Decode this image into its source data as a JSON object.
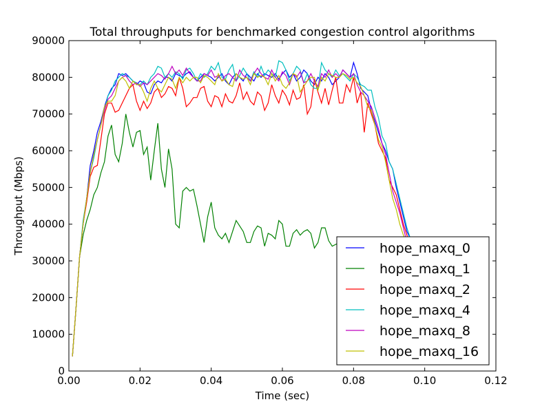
{
  "chart_data": {
    "type": "line",
    "title": "Total throughputs for benchmarked congestion control algorithms",
    "xlabel": "Time (sec)",
    "ylabel": "Throughput (Mbps)",
    "xlim": [
      0,
      0.12
    ],
    "ylim": [
      0,
      90000
    ],
    "xticks": [
      0,
      0.02,
      0.04,
      0.06,
      0.08,
      0.1,
      0.12
    ],
    "xtick_labels": [
      "0.00",
      "0.02",
      "0.04",
      "0.06",
      "0.08",
      "0.10",
      "0.12"
    ],
    "yticks": [
      0,
      10000,
      20000,
      30000,
      40000,
      50000,
      60000,
      70000,
      80000,
      90000
    ],
    "ytick_labels": [
      "0",
      "10000",
      "20000",
      "30000",
      "40000",
      "50000",
      "60000",
      "70000",
      "80000",
      "90000"
    ],
    "legend_position": "lower-right",
    "x": [
      0.001,
      0.002,
      0.003,
      0.004,
      0.005,
      0.006,
      0.007,
      0.008,
      0.009,
      0.01,
      0.011,
      0.012,
      0.013,
      0.014,
      0.015,
      0.016,
      0.017,
      0.018,
      0.019,
      0.02,
      0.021,
      0.022,
      0.023,
      0.024,
      0.025,
      0.026,
      0.027,
      0.028,
      0.029,
      0.03,
      0.031,
      0.032,
      0.033,
      0.034,
      0.035,
      0.036,
      0.037,
      0.038,
      0.039,
      0.04,
      0.041,
      0.042,
      0.043,
      0.044,
      0.045,
      0.046,
      0.047,
      0.048,
      0.049,
      0.05,
      0.051,
      0.052,
      0.053,
      0.054,
      0.055,
      0.056,
      0.057,
      0.058,
      0.059,
      0.06,
      0.061,
      0.062,
      0.063,
      0.064,
      0.065,
      0.066,
      0.067,
      0.068,
      0.069,
      0.07,
      0.071,
      0.072,
      0.073,
      0.074,
      0.075,
      0.076,
      0.077,
      0.078,
      0.079,
      0.08,
      0.081,
      0.082,
      0.083,
      0.084,
      0.085,
      0.086,
      0.087,
      0.088,
      0.089,
      0.09,
      0.091,
      0.092,
      0.093,
      0.094,
      0.095,
      0.096,
      0.097,
      0.098,
      0.099,
      0.1,
      0.101
    ],
    "series": [
      {
        "name": "hope_maxq_0",
        "color": "#0000ff",
        "values": [
          4000,
          17000,
          31000,
          40000,
          47000,
          56000,
          60000,
          65000,
          68000,
          72000,
          75000,
          77000,
          78000,
          81000,
          80500,
          81000,
          80000,
          79000,
          78000,
          79000,
          78500,
          76000,
          75500,
          78000,
          79000,
          78500,
          80000,
          80000,
          79000,
          81000,
          80500,
          80000,
          81000,
          81500,
          80000,
          79000,
          80000,
          81000,
          80500,
          80000,
          79000,
          80000,
          81000,
          79000,
          78000,
          80000,
          81000,
          80000,
          79000,
          81000,
          80000,
          79000,
          81000,
          80000,
          81000,
          80500,
          80000,
          81000,
          79500,
          81000,
          82000,
          80000,
          81000,
          79000,
          80000,
          82000,
          81000,
          79000,
          78000,
          80000,
          79000,
          81000,
          80000,
          78000,
          79000,
          80000,
          82000,
          81000,
          80000,
          84000,
          81000,
          77000,
          76000,
          75000,
          71000,
          68000,
          65000,
          62000,
          60000,
          57000,
          55000,
          50000,
          46000,
          42000,
          38000,
          36000,
          34000,
          32000,
          31000,
          30000,
          29500
        ]
      },
      {
        "name": "hope_maxq_1",
        "color": "#008000",
        "values": [
          4000,
          17000,
          31000,
          37000,
          41000,
          44000,
          48000,
          50000,
          54000,
          57000,
          64000,
          67000,
          59000,
          57000,
          62000,
          70000,
          65000,
          61000,
          65000,
          65500,
          59000,
          61000,
          52000,
          60000,
          67500,
          55000,
          50000,
          60500,
          55000,
          40000,
          39000,
          49000,
          50000,
          49000,
          49500,
          45000,
          40000,
          35000,
          42000,
          46000,
          39000,
          37000,
          36000,
          37500,
          35000,
          38000,
          41000,
          39500,
          38000,
          35000,
          35000,
          38000,
          39500,
          39000,
          34000,
          37500,
          37000,
          36000,
          41000,
          40000,
          34000,
          34000,
          37500,
          38500,
          37000,
          38000,
          38500,
          37500,
          33500,
          35000,
          39000,
          39000,
          35500,
          34000,
          34500,
          35000,
          34500,
          33500,
          33000,
          34000,
          34000,
          33500,
          33000,
          34000,
          33500,
          32000,
          33000,
          33000,
          32000,
          32000,
          32500,
          32000,
          31500,
          31000,
          31000,
          31000,
          30500,
          30500,
          30000,
          30000,
          30000
        ]
      },
      {
        "name": "hope_maxq_2",
        "color": "#ff0000",
        "values": [
          4000,
          17000,
          31000,
          40000,
          46000,
          53000,
          55500,
          56000,
          63000,
          70000,
          73000,
          73000,
          70500,
          71000,
          73000,
          75000,
          77000,
          78000,
          73500,
          71000,
          73500,
          71500,
          73000,
          76000,
          77000,
          74500,
          75500,
          77500,
          77000,
          75000,
          80000,
          77000,
          72000,
          73000,
          74500,
          74500,
          77000,
          77500,
          73500,
          72000,
          75000,
          74500,
          72000,
          75500,
          73500,
          73000,
          75000,
          78500,
          74000,
          76000,
          73500,
          72500,
          76000,
          75000,
          71000,
          73000,
          78000,
          75000,
          73000,
          76500,
          75000,
          72500,
          76500,
          74000,
          74500,
          78000,
          70000,
          72000,
          79500,
          76000,
          73000,
          77000,
          72500,
          76500,
          80000,
          73000,
          73000,
          78000,
          76000,
          80000,
          73000,
          76000,
          65000,
          73000,
          70000,
          67000,
          62000,
          60000,
          58000,
          52000,
          50000,
          48000,
          44000,
          40000,
          37000,
          34000,
          32000,
          31000,
          30000,
          30000,
          30000
        ]
      },
      {
        "name": "hope_maxq_4",
        "color": "#00bfbf",
        "values": [
          4000,
          17000,
          31000,
          41000,
          47000,
          54000,
          58000,
          63000,
          67000,
          71000,
          75000,
          76500,
          79000,
          80000,
          81000,
          80500,
          80000,
          79000,
          78500,
          78000,
          79000,
          78000,
          80000,
          81000,
          83000,
          82500,
          80000,
          81000,
          80000,
          81500,
          81000,
          79500,
          82000,
          82500,
          81000,
          79000,
          81000,
          80000,
          81000,
          83000,
          82000,
          84000,
          80000,
          79500,
          82000,
          83500,
          79000,
          80500,
          82500,
          81000,
          79000,
          81500,
          80000,
          83000,
          80500,
          82000,
          81000,
          80000,
          84500,
          84000,
          82000,
          79000,
          81000,
          83000,
          82000,
          78500,
          81000,
          78000,
          77000,
          77000,
          84000,
          82000,
          81000,
          80000,
          82000,
          80500,
          81000,
          80000,
          79000,
          81000,
          80000,
          78000,
          77500,
          76500,
          76500,
          72000,
          69000,
          64000,
          62000,
          57000,
          55000,
          51000,
          47000,
          43000,
          39000,
          36000,
          34000,
          32000,
          31000,
          30000,
          30000
        ]
      },
      {
        "name": "hope_maxq_8",
        "color": "#bf00bf",
        "values": [
          4000,
          17000,
          31000,
          40000,
          47000,
          54000,
          59000,
          63000,
          67000,
          71000,
          74000,
          75000,
          77000,
          79000,
          80000,
          80500,
          79000,
          78000,
          78500,
          77500,
          78500,
          78000,
          79000,
          80000,
          81000,
          80500,
          79500,
          81000,
          83000,
          81000,
          82000,
          80500,
          82500,
          81000,
          80000,
          79000,
          79000,
          81000,
          80500,
          82000,
          80000,
          80500,
          79000,
          80500,
          81000,
          80000,
          79000,
          82000,
          80500,
          80000,
          79000,
          81000,
          82500,
          81000,
          80000,
          79500,
          82000,
          80000,
          79000,
          81500,
          80500,
          78000,
          81000,
          80000,
          81500,
          78500,
          79000,
          81000,
          79000,
          77500,
          81000,
          80000,
          82000,
          80000,
          81000,
          80000,
          82000,
          81000,
          80000,
          81000,
          78000,
          76000,
          75000,
          73500,
          72000,
          69000,
          66000,
          62000,
          59000,
          54000,
          49000,
          46000,
          43000,
          39000,
          35000,
          33000,
          31000,
          30000,
          30000,
          30000,
          30000
        ]
      },
      {
        "name": "hope_maxq_16",
        "color": "#bfbf00",
        "values": [
          4000,
          17000,
          31000,
          40000,
          47000,
          54000,
          59000,
          63000,
          67000,
          72000,
          73500,
          73500,
          75000,
          79000,
          80000,
          79000,
          77000,
          79000,
          78000,
          78000,
          76000,
          73500,
          77000,
          79000,
          77000,
          76000,
          78000,
          80000,
          79500,
          77000,
          80000,
          78500,
          80000,
          79000,
          80000,
          80000,
          78500,
          80500,
          80000,
          79000,
          78000,
          81000,
          79000,
          79500,
          78000,
          77500,
          81000,
          80000,
          79500,
          80000,
          78000,
          81000,
          80000,
          80500,
          80000,
          78000,
          81000,
          79000,
          80500,
          78000,
          77000,
          78500,
          81000,
          80500,
          76000,
          77500,
          79000,
          80000,
          80000,
          76500,
          80000,
          79000,
          81000,
          80500,
          80000,
          80000,
          81000,
          80500,
          79500,
          80000,
          78500,
          77500,
          75000,
          72000,
          71000,
          67000,
          63000,
          61000,
          57000,
          52000,
          47000,
          44000,
          40000,
          37000,
          35000,
          34000,
          32000,
          31000,
          30000,
          30000,
          30000
        ]
      }
    ]
  }
}
